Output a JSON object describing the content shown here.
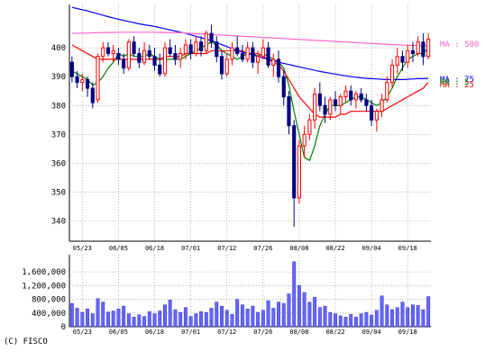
{
  "copyright": "(C) FISCO",
  "chart_data": [
    {
      "type": "candlestick",
      "title": "",
      "ylim": [
        333,
        415
      ],
      "yticks": [
        340,
        350,
        360,
        370,
        380,
        390,
        400
      ],
      "xtick_labels": [
        "05/23",
        "06/05",
        "06/18",
        "07/01",
        "07/12",
        "07/26",
        "08/08",
        "08/22",
        "09/04",
        "09/18"
      ],
      "grid": true,
      "colors": {
        "up": "#ff0000",
        "down": "#000080",
        "ma5": "#008000",
        "ma25": "#ff0000",
        "ma75": "#0000ff",
        "ma500": "#ff66cc"
      },
      "ohlc": [
        [
          395,
          397,
          388,
          390
        ],
        [
          390,
          392,
          386,
          388
        ],
        [
          388,
          391,
          385,
          389
        ],
        [
          389,
          390,
          383,
          386
        ],
        [
          386,
          388,
          379,
          381
        ],
        [
          382,
          398,
          381,
          397
        ],
        [
          397,
          402,
          395,
          400
        ],
        [
          400,
          402,
          397,
          398
        ],
        [
          398,
          401,
          395,
          399
        ],
        [
          398,
          400,
          394,
          396
        ],
        [
          396,
          398,
          391,
          393
        ],
        [
          393,
          403,
          392,
          402
        ],
        [
          402,
          404,
          397,
          398
        ],
        [
          398,
          400,
          393,
          395
        ],
        [
          395,
          402,
          394,
          399
        ],
        [
          399,
          401,
          396,
          397
        ],
        [
          397,
          400,
          392,
          394
        ],
        [
          394,
          398,
          390,
          391
        ],
        [
          391,
          402,
          390,
          400
        ],
        [
          400,
          403,
          397,
          398
        ],
        [
          398,
          401,
          394,
          396
        ],
        [
          396,
          400,
          393,
          398
        ],
        [
          398,
          403,
          396,
          401
        ],
        [
          401,
          403,
          396,
          398
        ],
        [
          398,
          404,
          397,
          402
        ],
        [
          402,
          404,
          397,
          399
        ],
        [
          399,
          406,
          398,
          405
        ],
        [
          405,
          408,
          400,
          402
        ],
        [
          402,
          404,
          395,
          397
        ],
        [
          397,
          399,
          389,
          391
        ],
        [
          391,
          398,
          390,
          396
        ],
        [
          396,
          402,
          394,
          400
        ],
        [
          400,
          404,
          397,
          398
        ],
        [
          398,
          401,
          395,
          396
        ],
        [
          396,
          402,
          395,
          400
        ],
        [
          400,
          402,
          393,
          395
        ],
        [
          395,
          399,
          391,
          397
        ],
        [
          397,
          403,
          396,
          400
        ],
        [
          400,
          402,
          393,
          394
        ],
        [
          394,
          398,
          390,
          396
        ],
        [
          396,
          399,
          388,
          390
        ],
        [
          390,
          392,
          380,
          383
        ],
        [
          383,
          385,
          370,
          373
        ],
        [
          373,
          375,
          338,
          348
        ],
        [
          348,
          368,
          346,
          366
        ],
        [
          366,
          373,
          362,
          370
        ],
        [
          370,
          377,
          368,
          375
        ],
        [
          375,
          386,
          372,
          384
        ],
        [
          384,
          388,
          378,
          380
        ],
        [
          380,
          383,
          374,
          377
        ],
        [
          377,
          383,
          375,
          382
        ],
        [
          382,
          385,
          378,
          380
        ],
        [
          380,
          384,
          377,
          383
        ],
        [
          383,
          387,
          381,
          385
        ],
        [
          385,
          387,
          380,
          382
        ],
        [
          382,
          385,
          379,
          384
        ],
        [
          384,
          386,
          381,
          382
        ],
        [
          382,
          384,
          378,
          380
        ],
        [
          380,
          382,
          373,
          375
        ],
        [
          375,
          379,
          371,
          378
        ],
        [
          378,
          384,
          376,
          382
        ],
        [
          382,
          390,
          381,
          388
        ],
        [
          388,
          396,
          386,
          394
        ],
        [
          394,
          400,
          391,
          397
        ],
        [
          397,
          399,
          392,
          395
        ],
        [
          395,
          401,
          393,
          399
        ],
        [
          399,
          402,
          395,
          398
        ],
        [
          398,
          404,
          397,
          402
        ],
        [
          402,
          405,
          394,
          397
        ],
        [
          397,
          405,
          396,
          403
        ]
      ],
      "ma": [
        {
          "name": "MA : 5",
          "color": "#008000",
          "values": [
            392,
            391,
            390,
            389,
            387,
            388,
            390,
            393,
            395,
            398,
            397,
            398,
            397,
            397,
            397,
            398,
            397,
            396,
            396,
            396,
            396,
            396,
            397,
            398,
            399,
            400,
            401,
            402,
            401,
            399,
            398,
            397,
            396,
            397,
            398,
            398,
            397,
            398,
            397,
            396,
            395,
            393,
            387,
            378,
            370,
            362,
            361,
            366,
            373,
            377,
            380,
            380,
            380,
            381,
            382,
            383,
            383,
            382,
            381,
            380,
            381,
            383,
            386,
            390,
            393,
            396,
            397,
            398,
            398,
            400
          ]
        },
        {
          "name": "MA : 25",
          "color": "#ff0000",
          "values": [
            401,
            400,
            399,
            398,
            397,
            396,
            396,
            396,
            396,
            396,
            396,
            396,
            396,
            396,
            396,
            396,
            396,
            396,
            397,
            397,
            397,
            397,
            398,
            398,
            398,
            398,
            398,
            399,
            399,
            399,
            399,
            399,
            399,
            399,
            398,
            398,
            398,
            397,
            396,
            395,
            394,
            392,
            389,
            386,
            383,
            381,
            379,
            377,
            376,
            376,
            376,
            376,
            377,
            377,
            378,
            378,
            378,
            378,
            378,
            378,
            378,
            379,
            380,
            381,
            382,
            383,
            384,
            385,
            386,
            388
          ]
        },
        {
          "name": "MA : 75",
          "color": "#0000ff",
          "values": [
            414,
            413.6,
            413.2,
            412.8,
            412.3,
            411.8,
            411.3,
            410.8,
            410.3,
            409.9,
            409.5,
            409.1,
            408.7,
            408.3,
            408,
            407.7,
            407.4,
            407,
            406.6,
            406.2,
            405.8,
            405.4,
            405,
            404.5,
            404,
            403.5,
            403,
            402.5,
            401.8,
            401.1,
            400.4,
            399.7,
            399,
            398.5,
            398,
            397.5,
            397,
            396.5,
            396,
            395.5,
            395,
            394.6,
            394.2,
            393.8,
            393.4,
            393,
            392.6,
            392.2,
            391.8,
            391.5,
            391.2,
            390.9,
            390.6,
            390.3,
            390,
            389.8,
            389.6,
            389.4,
            389.3,
            389.2,
            389.1,
            389,
            389,
            389,
            389,
            389.1,
            389.2,
            389.3,
            389.3,
            389.4
          ]
        },
        {
          "name": "MA : 500",
          "color": "#ff66cc",
          "values": [
            405,
            405,
            405.1,
            405.1,
            405.2,
            405.2,
            405.3,
            405.3,
            405.3,
            405.4,
            405.4,
            405.4,
            405.4,
            405.4,
            405.4,
            405.4,
            405.4,
            405.3,
            405.3,
            405.3,
            405.2,
            405.2,
            405.1,
            405,
            404.9,
            404.8,
            404.7,
            404.6,
            404.5,
            404.4,
            404.3,
            404.2,
            404.1,
            404,
            403.9,
            403.8,
            403.7,
            403.6,
            403.5,
            403.4,
            403.3,
            403.2,
            403.1,
            403,
            402.9,
            402.8,
            402.7,
            402.6,
            402.5,
            402.4,
            402.3,
            402.2,
            402.1,
            402,
            401.9,
            401.8,
            401.7,
            401.6,
            401.5,
            401.4,
            401.3,
            401.2,
            401.1,
            401,
            400.9,
            400.9,
            400.8,
            400.8,
            400.7,
            400.7
          ]
        }
      ]
    },
    {
      "type": "bar",
      "title": "",
      "ylim": [
        0,
        2000000
      ],
      "ytick_labels": [
        "0",
        "400,000",
        "800,000",
        "1,200,000",
        "1,600,000"
      ],
      "yticks": [
        0,
        400000,
        800000,
        1200000,
        1600000
      ],
      "xtick_labels": [
        "05/23",
        "06/05",
        "06/18",
        "07/01",
        "07/12",
        "07/26",
        "08/08",
        "08/22",
        "09/04",
        "09/18"
      ],
      "bar_color": "#6666ff",
      "values": [
        680000,
        540000,
        420000,
        520000,
        380000,
        820000,
        720000,
        430000,
        460000,
        520000,
        600000,
        380000,
        280000,
        350000,
        300000,
        440000,
        380000,
        460000,
        640000,
        780000,
        500000,
        420000,
        560000,
        300000,
        380000,
        440000,
        420000,
        540000,
        720000,
        600000,
        480000,
        360000,
        800000,
        640000,
        520000,
        600000,
        420000,
        480000,
        760000,
        540000,
        720000,
        680000,
        960000,
        1900000,
        1200000,
        1000000,
        720000,
        860000,
        560000,
        600000,
        420000,
        380000,
        320000,
        280000,
        360000,
        280000,
        380000,
        420000,
        340000,
        480000,
        900000,
        640000,
        500000,
        560000,
        720000,
        560000,
        640000,
        620000,
        500000,
        880000
      ]
    }
  ]
}
